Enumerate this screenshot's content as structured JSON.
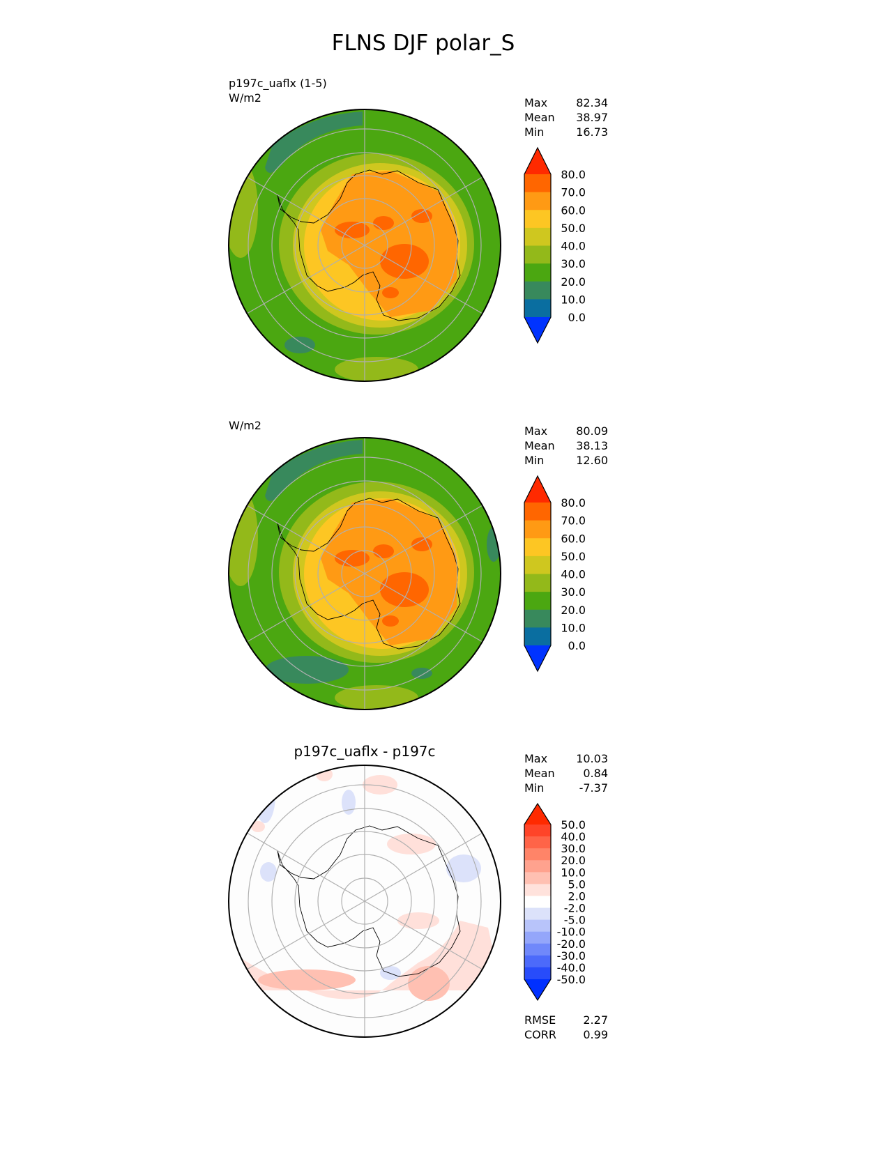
{
  "chart_data": [
    {
      "type": "heatmap",
      "projection": "polar stereographic (south)",
      "suptitle": "FLNS DJF polar_S",
      "title_left": "p197c_uaflx (1-5)",
      "units": "W/m2",
      "stats": {
        "Max": "82.34",
        "Mean": "38.97",
        "Min": "16.73"
      },
      "colorbar": {
        "levels": [
          "80.0",
          "70.0",
          "60.0",
          "50.0",
          "40.0",
          "30.0",
          "20.0",
          "10.0",
          "0.0"
        ],
        "colors": [
          "#ff2a00",
          "#ff6600",
          "#ff9a14",
          "#fdc623",
          "#cfc71f",
          "#93b91a",
          "#4ba711",
          "#38895c",
          "#0a6ea0",
          "#0033ff"
        ],
        "extend": "both"
      }
    },
    {
      "type": "heatmap",
      "projection": "polar stereographic (south)",
      "title_left": "",
      "units": "W/m2",
      "stats": {
        "Max": "80.09",
        "Mean": "38.13",
        "Min": "12.60"
      },
      "colorbar": {
        "levels": [
          "80.0",
          "70.0",
          "60.0",
          "50.0",
          "40.0",
          "30.0",
          "20.0",
          "10.0",
          "0.0"
        ],
        "colors": [
          "#ff2a00",
          "#ff6600",
          "#ff9a14",
          "#fdc623",
          "#cfc71f",
          "#93b91a",
          "#4ba711",
          "#38895c",
          "#0a6ea0",
          "#0033ff"
        ],
        "extend": "both"
      }
    },
    {
      "type": "heatmap",
      "projection": "polar stereographic (south)",
      "title": "p197c_uaflx - p197c",
      "stats": {
        "Max": "10.03",
        "Mean": "0.84",
        "Min": "-7.37"
      },
      "metrics": {
        "RMSE": "2.27",
        "CORR": "0.99"
      },
      "colorbar": {
        "levels": [
          "50.0",
          "40.0",
          "30.0",
          "20.0",
          "10.0",
          "5.0",
          "2.0",
          "-2.0",
          "-5.0",
          "-10.0",
          "-20.0",
          "-30.0",
          "-40.0",
          "-50.0"
        ],
        "colors": [
          "#ff2a00",
          "#ff4428",
          "#ff6448",
          "#ff8468",
          "#ffa28e",
          "#ffc0b2",
          "#ffe2dc",
          "#ffffff",
          "#dce2fa",
          "#b8c4fa",
          "#94a6fa",
          "#7088fa",
          "#4c6afa",
          "#284cfa",
          "#0030ff"
        ],
        "extend": "both"
      }
    }
  ]
}
